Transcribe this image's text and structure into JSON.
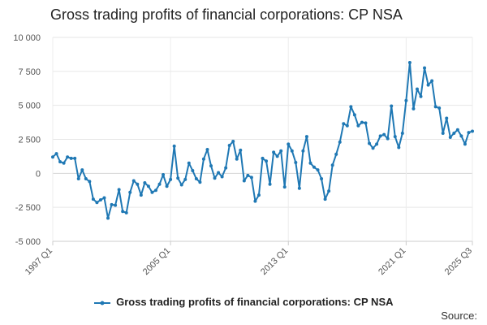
{
  "chart_data": {
    "type": "line",
    "title": "Gross trading profits of financial corporations: CP NSA",
    "xlabel": "",
    "ylabel": "",
    "ylim": [
      -5000,
      10000
    ],
    "yticks": [
      10000,
      7500,
      5000,
      2500,
      0,
      -2500,
      -5000
    ],
    "ytick_labels": [
      "10 000",
      "7 500",
      "5 000",
      "2 500",
      "0",
      "-2 500",
      "-5 000"
    ],
    "xticks": [
      "1997 Q1",
      "2005 Q1",
      "2013 Q1",
      "2021 Q1",
      "2025 Q3"
    ],
    "xtick_index": [
      0,
      32,
      64,
      96,
      114
    ],
    "grid": true,
    "legend_position": "bottom",
    "color": "#1f78b4",
    "series": [
      {
        "name": "Gross trading profits of financial corporations: CP NSA",
        "start": "1997 Q1",
        "values": [
          1200,
          1450,
          850,
          750,
          1200,
          1100,
          1100,
          -400,
          250,
          -400,
          -600,
          -1900,
          -2150,
          -1950,
          -1800,
          -3300,
          -2300,
          -2350,
          -1200,
          -2800,
          -2900,
          -1400,
          -550,
          -800,
          -1600,
          -700,
          -950,
          -1400,
          -1250,
          -800,
          -100,
          -950,
          -450,
          2000,
          -350,
          -850,
          -450,
          750,
          200,
          -400,
          -650,
          1050,
          1750,
          550,
          -350,
          50,
          -250,
          400,
          2050,
          2350,
          1050,
          1700,
          -550,
          -150,
          -300,
          -2050,
          -1600,
          1100,
          900,
          -800,
          1550,
          1250,
          1650,
          -1000,
          2150,
          1650,
          800,
          -1100,
          1650,
          2700,
          750,
          450,
          250,
          -400,
          -1900,
          -1300,
          600,
          1400,
          2300,
          3650,
          3500,
          4900,
          4300,
          3500,
          3750,
          3700,
          2200,
          1850,
          2150,
          2750,
          2850,
          2550,
          4950,
          2700,
          1900,
          2950,
          5350,
          8150,
          4750,
          6200,
          5650,
          7750,
          6500,
          6800,
          4900,
          4800,
          2950,
          4050,
          2650,
          2950,
          3200,
          2750,
          2150,
          3000,
          3100
        ]
      }
    ]
  },
  "legend": {
    "label": "Gross trading profits of financial corporations: CP NSA"
  },
  "footer": {
    "source_label": "Source:"
  }
}
